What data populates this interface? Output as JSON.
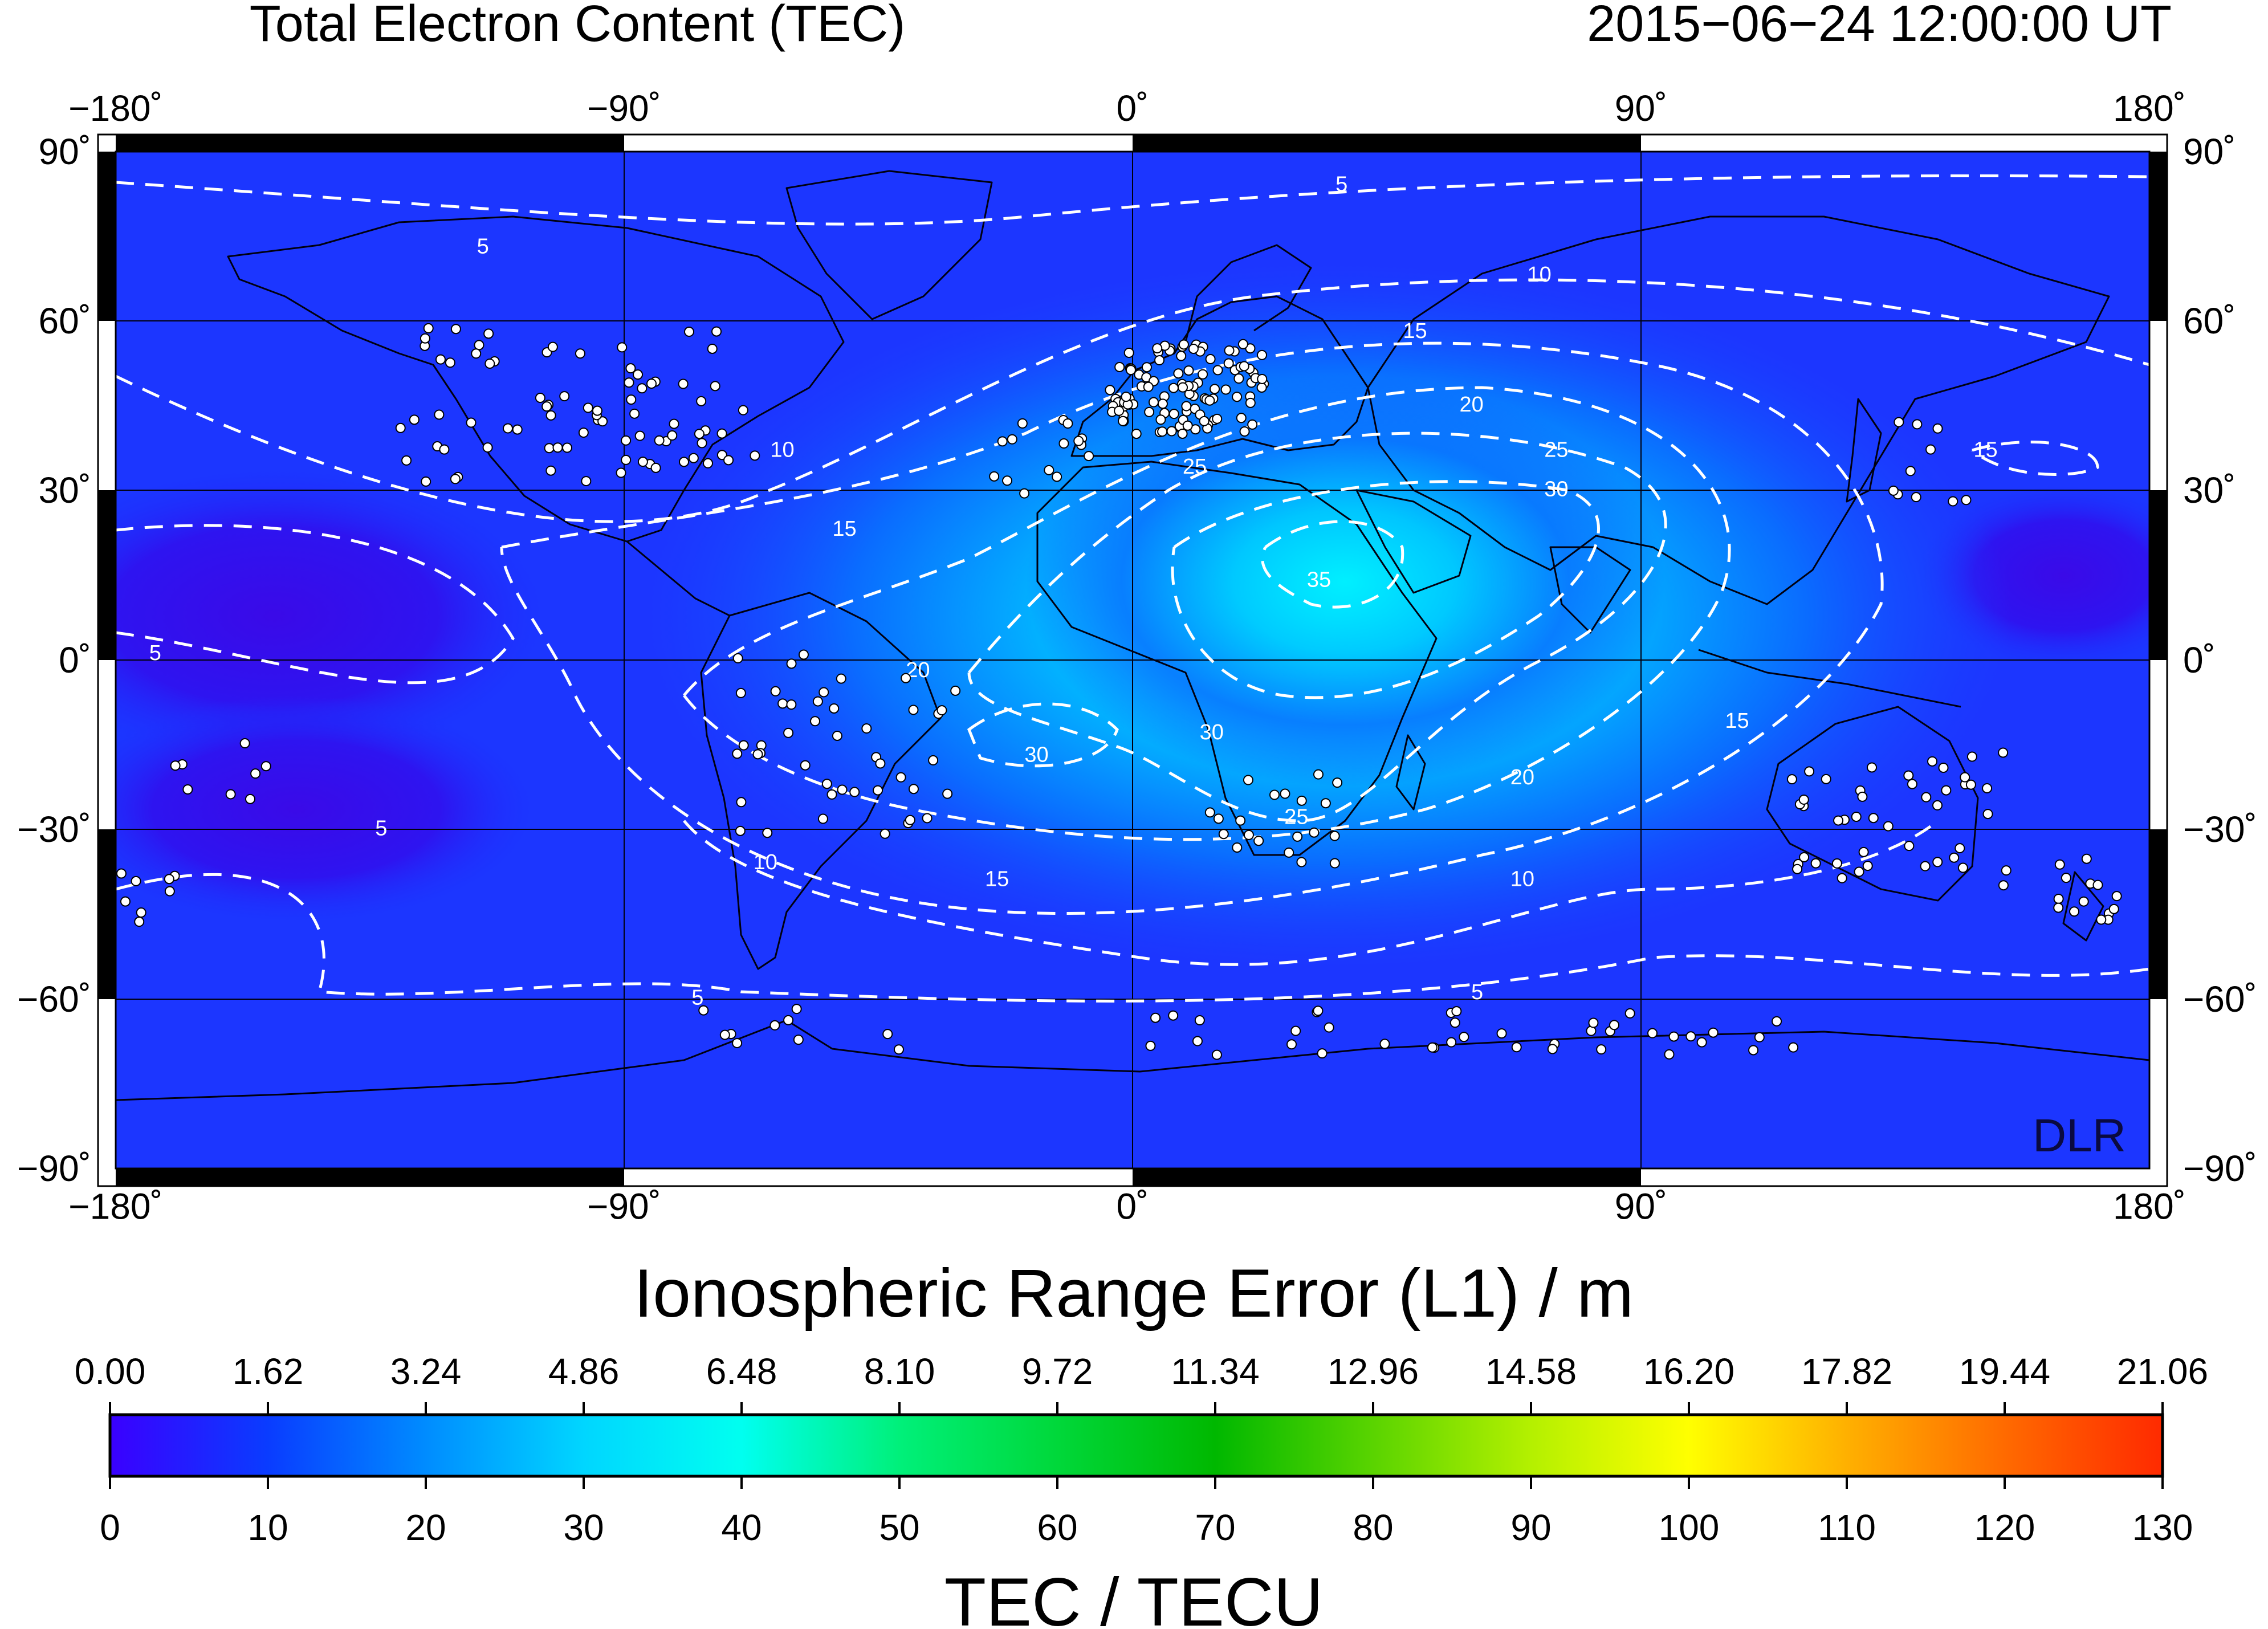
{
  "header": {
    "title": "Total Electron Content (TEC)",
    "timestamp": "2015−06−24  12:00:00 UT"
  },
  "map": {
    "lon_tick_labels": [
      "−180˚",
      "−90˚",
      "0˚",
      "90˚",
      "180˚"
    ],
    "lat_tick_labels": [
      "90˚",
      "60˚",
      "30˚",
      "0˚",
      "−30˚",
      "−60˚",
      "−90˚"
    ],
    "watermark": "DLR",
    "colors": {
      "low": "#2a0af0",
      "mid": "#1844ff",
      "high": "#00e8ff",
      "contour": "#ffffff",
      "station": "#ffffff"
    },
    "contour_labels": [
      {
        "text": "5",
        "lon": 37,
        "lat": 84
      },
      {
        "text": "5",
        "lon": -115,
        "lat": 73
      },
      {
        "text": "5",
        "lon": -173,
        "lat": 1
      },
      {
        "text": "5",
        "lon": -133,
        "lat": -30
      },
      {
        "text": "5",
        "lon": -77,
        "lat": -60
      },
      {
        "text": "5",
        "lon": 61,
        "lat": -59
      },
      {
        "text": "10",
        "lon": 72,
        "lat": 68
      },
      {
        "text": "10",
        "lon": -62,
        "lat": 37
      },
      {
        "text": "10",
        "lon": -65,
        "lat": -36
      },
      {
        "text": "10",
        "lon": 69,
        "lat": -39
      },
      {
        "text": "15",
        "lon": 50,
        "lat": 58
      },
      {
        "text": "15",
        "lon": -51,
        "lat": 23
      },
      {
        "text": "15",
        "lon": -24,
        "lat": -39
      },
      {
        "text": "15",
        "lon": 107,
        "lat": -11
      },
      {
        "text": "15",
        "lon": 151,
        "lat": 37
      },
      {
        "text": "20",
        "lon": 60,
        "lat": 45
      },
      {
        "text": "20",
        "lon": -38,
        "lat": -2
      },
      {
        "text": "20",
        "lon": 69,
        "lat": -21
      },
      {
        "text": "25",
        "lon": 11,
        "lat": 34
      },
      {
        "text": "25",
        "lon": 75,
        "lat": 37
      },
      {
        "text": "25",
        "lon": 29,
        "lat": -28
      },
      {
        "text": "30",
        "lon": 75,
        "lat": 30
      },
      {
        "text": "30",
        "lon": -17,
        "lat": -17
      },
      {
        "text": "30",
        "lon": 14,
        "lat": -13
      },
      {
        "text": "35",
        "lon": 33,
        "lat": 14
      }
    ]
  },
  "colorbar": {
    "title": "Ionospheric Range Error (L1) / m",
    "range_error_labels": [
      "0.00",
      "1.62",
      "3.24",
      "4.86",
      "6.48",
      "8.10",
      "9.72",
      "11.34",
      "12.96",
      "14.58",
      "16.20",
      "17.82",
      "19.44",
      "21.06"
    ],
    "tec_labels": [
      "0",
      "10",
      "20",
      "30",
      "40",
      "50",
      "60",
      "70",
      "80",
      "90",
      "100",
      "110",
      "120",
      "130"
    ],
    "tec_title": "TEC / TECU",
    "tec_range": [
      0,
      130
    ],
    "stops": [
      {
        "tec": 0,
        "color": "#3a00ff"
      },
      {
        "tec": 10,
        "color": "#0a3cff"
      },
      {
        "tec": 20,
        "color": "#008cff"
      },
      {
        "tec": 30,
        "color": "#00d6ff"
      },
      {
        "tec": 40,
        "color": "#00fff0"
      },
      {
        "tec": 50,
        "color": "#00f07a"
      },
      {
        "tec": 60,
        "color": "#00d83a"
      },
      {
        "tec": 70,
        "color": "#00b800"
      },
      {
        "tec": 80,
        "color": "#5ad400"
      },
      {
        "tec": 90,
        "color": "#b4f000"
      },
      {
        "tec": 100,
        "color": "#ffff00"
      },
      {
        "tec": 110,
        "color": "#ffb000"
      },
      {
        "tec": 120,
        "color": "#ff6a00"
      },
      {
        "tec": 130,
        "color": "#ff2a00"
      }
    ]
  }
}
